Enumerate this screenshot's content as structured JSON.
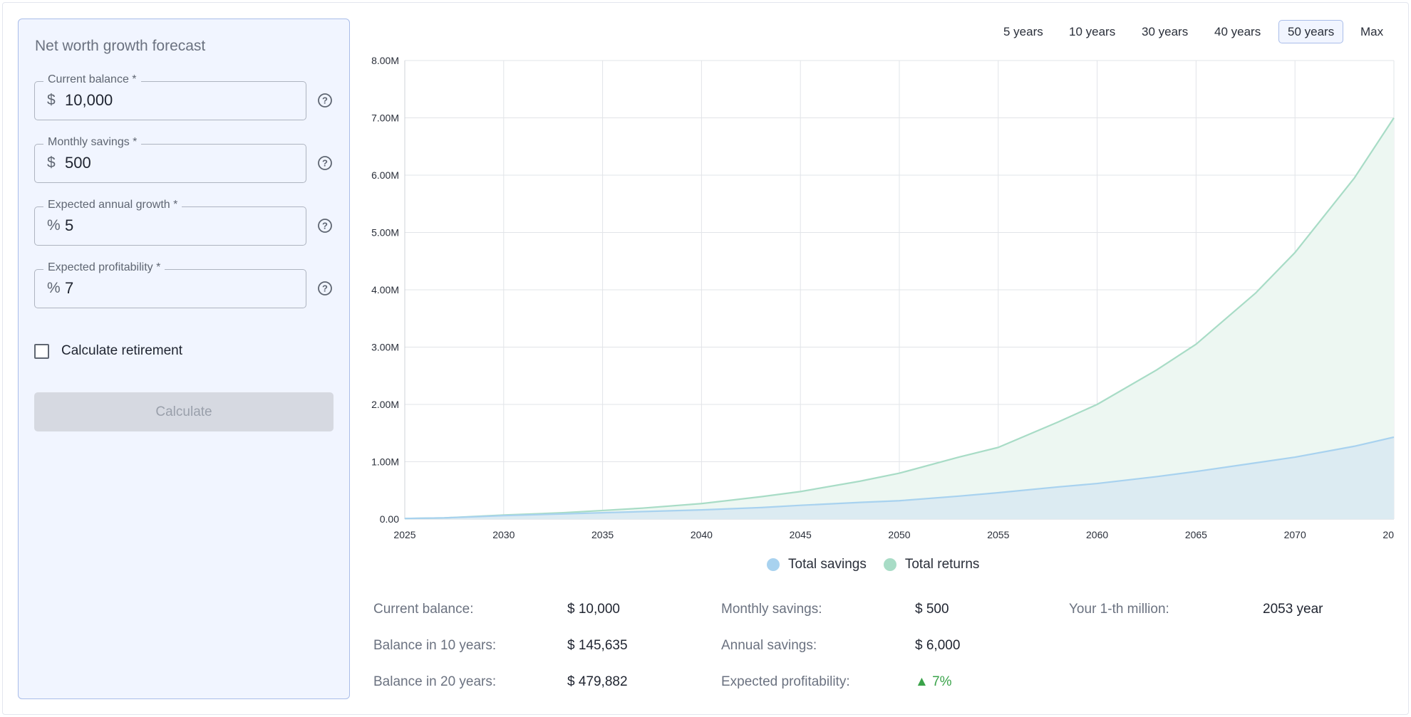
{
  "form": {
    "title": "Net worth growth forecast",
    "fields": [
      {
        "label": "Current balance *",
        "prefix": "$",
        "value": "10,000"
      },
      {
        "label": "Monthly savings *",
        "prefix": "$",
        "value": "500"
      },
      {
        "label": "Expected annual growth *",
        "prefix": "%",
        "value": "5"
      },
      {
        "label": "Expected profitability *",
        "prefix": "%",
        "value": "7"
      }
    ],
    "retirement_checkbox": {
      "label": "Calculate retirement",
      "checked": false
    },
    "calculate_button": "Calculate"
  },
  "range_tabs": {
    "items": [
      "5 years",
      "10 years",
      "30 years",
      "40 years",
      "50 years",
      "Max"
    ],
    "active": "50 years"
  },
  "legend": {
    "savings": "Total savings",
    "returns": "Total returns"
  },
  "stats": {
    "current_balance_label": "Current balance:",
    "current_balance_value": "$ 10,000",
    "balance_10_label": "Balance in 10 years:",
    "balance_10_value": "$ 145,635",
    "balance_20_label": "Balance in 20 years:",
    "balance_20_value": "$ 479,882",
    "monthly_savings_label": "Monthly savings:",
    "monthly_savings_value": "$ 500",
    "annual_savings_label": "Annual savings:",
    "annual_savings_value": "$ 6,000",
    "profitability_label": "Expected profitability:",
    "profitability_value": "▲ 7%",
    "first_million_label": "Your 1-th million:",
    "first_million_value": "2053 year"
  },
  "colors": {
    "savings_line": "#a8d2ef",
    "savings_fill": "#dcebf2",
    "returns_line": "#a8dcc6",
    "returns_fill": "#edf7f2",
    "active_tab_border": "#a9bde9",
    "up_green": "#3aa34a"
  },
  "chart_data": {
    "type": "area",
    "x_tick_labels": [
      "2025",
      "2030",
      "2035",
      "2040",
      "2045",
      "2050",
      "2055",
      "2060",
      "2065",
      "2070",
      "20"
    ],
    "y_tick_labels": [
      "0.00",
      "1.00M",
      "2.00M",
      "3.00M",
      "4.00M",
      "5.00M",
      "6.00M",
      "7.00M",
      "8.00M"
    ],
    "xlim": [
      2025,
      2075
    ],
    "ylim": [
      0,
      8000000
    ],
    "grid": true,
    "legend_position": "bottom-center",
    "x": [
      2025,
      2027,
      2030,
      2033,
      2035,
      2037,
      2040,
      2043,
      2045,
      2048,
      2050,
      2053,
      2055,
      2058,
      2060,
      2063,
      2065,
      2068,
      2070,
      2073,
      2075
    ],
    "series": [
      {
        "name": "Total savings",
        "values": [
          10000,
          20000,
          60000,
          90000,
          110000,
          130000,
          160000,
          200000,
          240000,
          290000,
          320000,
          400000,
          460000,
          560000,
          620000,
          740000,
          830000,
          980000,
          1080000,
          1270000,
          1430000
        ]
      },
      {
        "name": "Total returns",
        "values": [
          10000,
          20000,
          70000,
          110000,
          150000,
          190000,
          270000,
          390000,
          480000,
          660000,
          800000,
          1080000,
          1250000,
          1690000,
          2000000,
          2600000,
          3050000,
          3940000,
          4650000,
          5950000,
          7000000
        ]
      }
    ]
  }
}
